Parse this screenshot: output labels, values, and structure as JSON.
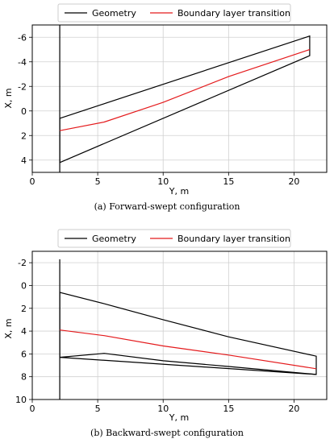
{
  "chart_data": [
    {
      "type": "line",
      "caption": "(a)  Forward-swept configuration",
      "xlabel": "Y, m",
      "ylabel": "X, m",
      "xlim": [
        0,
        22.5
      ],
      "ylim": [
        5,
        -7
      ],
      "y_inverted": true,
      "xticks": [
        0,
        5,
        10,
        15,
        20
      ],
      "yticks": [
        -6,
        -4,
        -2,
        0,
        2,
        4
      ],
      "grid": true,
      "legend": {
        "placement": "top",
        "entries": [
          "Geometry",
          "Boundary layer transition"
        ]
      },
      "series": [
        {
          "name": "Geometry",
          "color": "#000000",
          "x": [
            2.1,
            2.1,
            21.2,
            21.2,
            2.1
          ],
          "y": [
            4.2,
            0.6,
            -6.1,
            -4.5,
            4.2
          ]
        },
        {
          "name": "Boundary layer transition",
          "color": "#e41a1c",
          "x": [
            2.1,
            5.5,
            10.0,
            15.0,
            21.2
          ],
          "y": [
            1.6,
            0.9,
            -0.7,
            -2.8,
            -5.0
          ]
        }
      ],
      "root_line": {
        "x": 2.1,
        "y_from": -7,
        "y_to": 5
      }
    },
    {
      "type": "line",
      "caption": "(b)  Backward-swept configuration",
      "xlabel": "Y, m",
      "ylabel": "X, m",
      "xlim": [
        0,
        22.5
      ],
      "ylim": [
        10,
        -3
      ],
      "y_inverted": true,
      "xticks": [
        0,
        5,
        10,
        15,
        20
      ],
      "yticks": [
        -2,
        0,
        2,
        4,
        6,
        8,
        10
      ],
      "grid": true,
      "legend": {
        "placement": "top",
        "entries": [
          "Geometry",
          "Boundary layer transition"
        ]
      },
      "series": [
        {
          "name": "Geometry",
          "color": "#000000",
          "x": [
            2.1,
            2.1,
            5.5,
            10.0,
            15.0,
            21.7,
            21.7,
            2.1
          ],
          "y": [
            6.3,
            0.6,
            1.6,
            3.0,
            4.5,
            6.2,
            7.8,
            6.3
          ]
        },
        {
          "name": "Boundary layer transition",
          "color": "#e41a1c",
          "x": [
            2.1,
            5.5,
            10.0,
            15.0,
            21.7
          ],
          "y": [
            3.9,
            4.4,
            5.3,
            6.1,
            7.3
          ]
        }
      ],
      "geometry_trailing": {
        "x": [
          2.1,
          5.5,
          10.0,
          15.0,
          21.7
        ],
        "y": [
          6.3,
          5.95,
          6.6,
          7.1,
          7.8
        ]
      },
      "root_line": {
        "x": 2.1,
        "y_from": -2.3,
        "y_to": 10
      }
    }
  ]
}
